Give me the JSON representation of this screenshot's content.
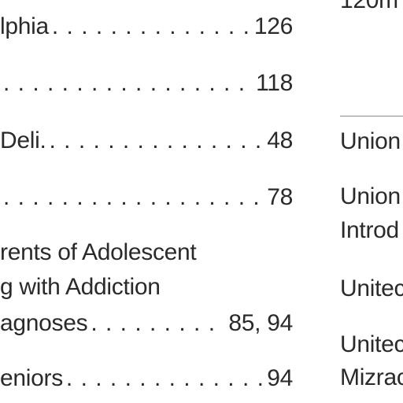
{
  "left_column": {
    "entries": [
      {
        "term": "lphia",
        "pages": "126"
      },
      {
        "term": "",
        "pages": "118"
      },
      {
        "term": "Deli.",
        "pages": "48"
      },
      {
        "term": "",
        "pages": "78"
      },
      {
        "term_lines": [
          "rents of Adolescent",
          "g with Addiction"
        ],
        "term": "agnoses",
        "pages": "85, 94"
      },
      {
        "term": "eniors",
        "pages": "94"
      }
    ]
  },
  "right_column": {
    "top_fragment": "120m",
    "entries": [
      {
        "lines": [
          "Union"
        ]
      },
      {
        "lines": [
          "Union",
          "Introd"
        ]
      },
      {
        "lines": [
          "Unitec"
        ]
      },
      {
        "lines": [
          "Unitec",
          "Mizrac"
        ]
      }
    ]
  }
}
